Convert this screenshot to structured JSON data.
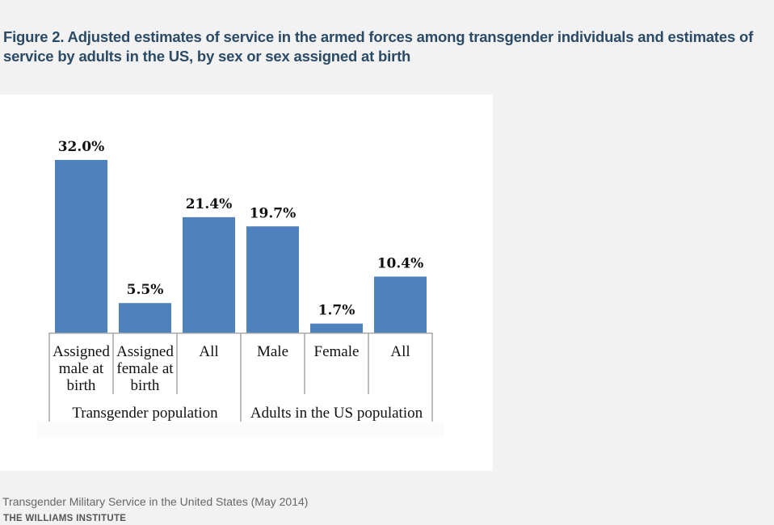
{
  "title": "Figure 2. Adjusted estimates of service in the armed forces among transgender individuals and estimates of service by adults in the US, by sex or sex assigned at birth",
  "footer": {
    "source": "Transgender Military Service in the United States (May 2014)",
    "organization": "THE WILLIAMS INSTITUTE"
  },
  "colors": {
    "bar": "#4f81bd",
    "axis": "#a6a6a6"
  },
  "chart_data": {
    "type": "bar",
    "title": "",
    "xlabel": "",
    "ylabel": "",
    "ylim": [
      0,
      32
    ],
    "grid": false,
    "legend": "none",
    "categories": [
      [
        "Assigned",
        "male at",
        "birth"
      ],
      [
        "Assigned",
        "female at",
        "birth"
      ],
      [
        "All"
      ],
      [
        "Male"
      ],
      [
        "Female"
      ],
      [
        "All"
      ]
    ],
    "groups": [
      {
        "label": "Transgender population",
        "start": 0,
        "end": 2
      },
      {
        "label": "Adults in the US population",
        "start": 3,
        "end": 5
      }
    ],
    "values": [
      32.0,
      5.5,
      21.4,
      19.7,
      1.7,
      10.4
    ],
    "value_labels": [
      "32.0%",
      "5.5%",
      "21.4%",
      "19.7%",
      "1.7%",
      "10.4%"
    ]
  }
}
